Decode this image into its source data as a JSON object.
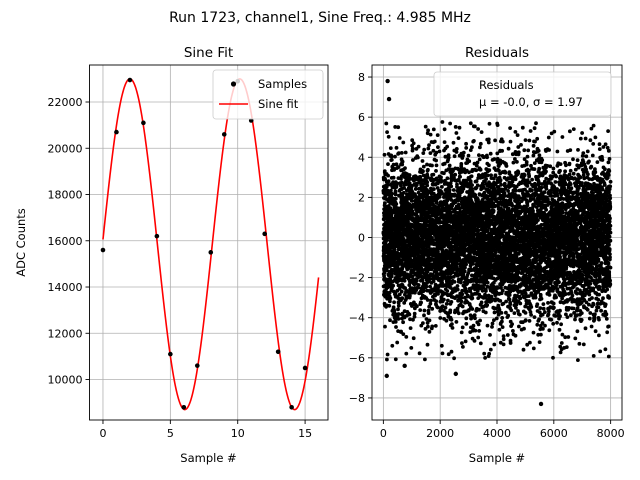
{
  "figure": {
    "suptitle": "Run 1723, channel1, Sine Freq.: 4.985 MHz"
  },
  "chart_data": [
    {
      "type": "line",
      "title": "Sine Fit",
      "xlabel": "Sample #",
      "ylabel": "ADC Counts",
      "xlim": [
        -1,
        16.7
      ],
      "ylim": [
        8250,
        23600
      ],
      "xticks": [
        0,
        5,
        10,
        15
      ],
      "yticks": [
        10000,
        12000,
        14000,
        16000,
        18000,
        20000,
        22000
      ],
      "grid": true,
      "legend_position": "top-right",
      "series": [
        {
          "name": "Samples",
          "kind": "scatter",
          "color": "#000000",
          "x": [
            0,
            1,
            2,
            3,
            4,
            5,
            6,
            7,
            8,
            9,
            10,
            11,
            12,
            13,
            14,
            15
          ],
          "y": [
            15600,
            20700,
            22950,
            21100,
            16200,
            11100,
            8800,
            10600,
            15500,
            20600,
            22900,
            21200,
            16300,
            11200,
            8800,
            10500
          ]
        },
        {
          "name": "Sine fit",
          "kind": "line",
          "color": "#ff0000",
          "model": {
            "offset": 15850,
            "amplitude": 7150,
            "period_samples": 8.15,
            "peak_at_sample": 2.0
          },
          "x_range": [
            0,
            16
          ]
        }
      ]
    },
    {
      "type": "scatter",
      "title": "Residuals",
      "xlabel": "Sample #",
      "ylabel": "",
      "xlim": [
        -400,
        8400
      ],
      "ylim": [
        -9.1,
        8.6
      ],
      "xticks": [
        0,
        2000,
        4000,
        6000,
        8000
      ],
      "yticks": [
        -8,
        -6,
        -4,
        -2,
        0,
        2,
        4,
        6,
        8
      ],
      "grid": true,
      "legend_position": "top-right",
      "legend_entries": [
        "Residuals",
        "μ = -0.0, σ = 1.97"
      ],
      "series": [
        {
          "name": "Residuals",
          "color": "#000000",
          "n_points": 8000,
          "mean": -0.0,
          "std": 1.97,
          "x_range": [
            0,
            8000
          ],
          "noted_outliers": [
            {
              "x": 150,
              "y": 7.8
            },
            {
              "x": 200,
              "y": 6.9
            },
            {
              "x": 120,
              "y": -6.9
            },
            {
              "x": 5550,
              "y": -8.3
            },
            {
              "x": 2550,
              "y": -6.8
            },
            {
              "x": 750,
              "y": -6.4
            }
          ]
        }
      ]
    }
  ]
}
